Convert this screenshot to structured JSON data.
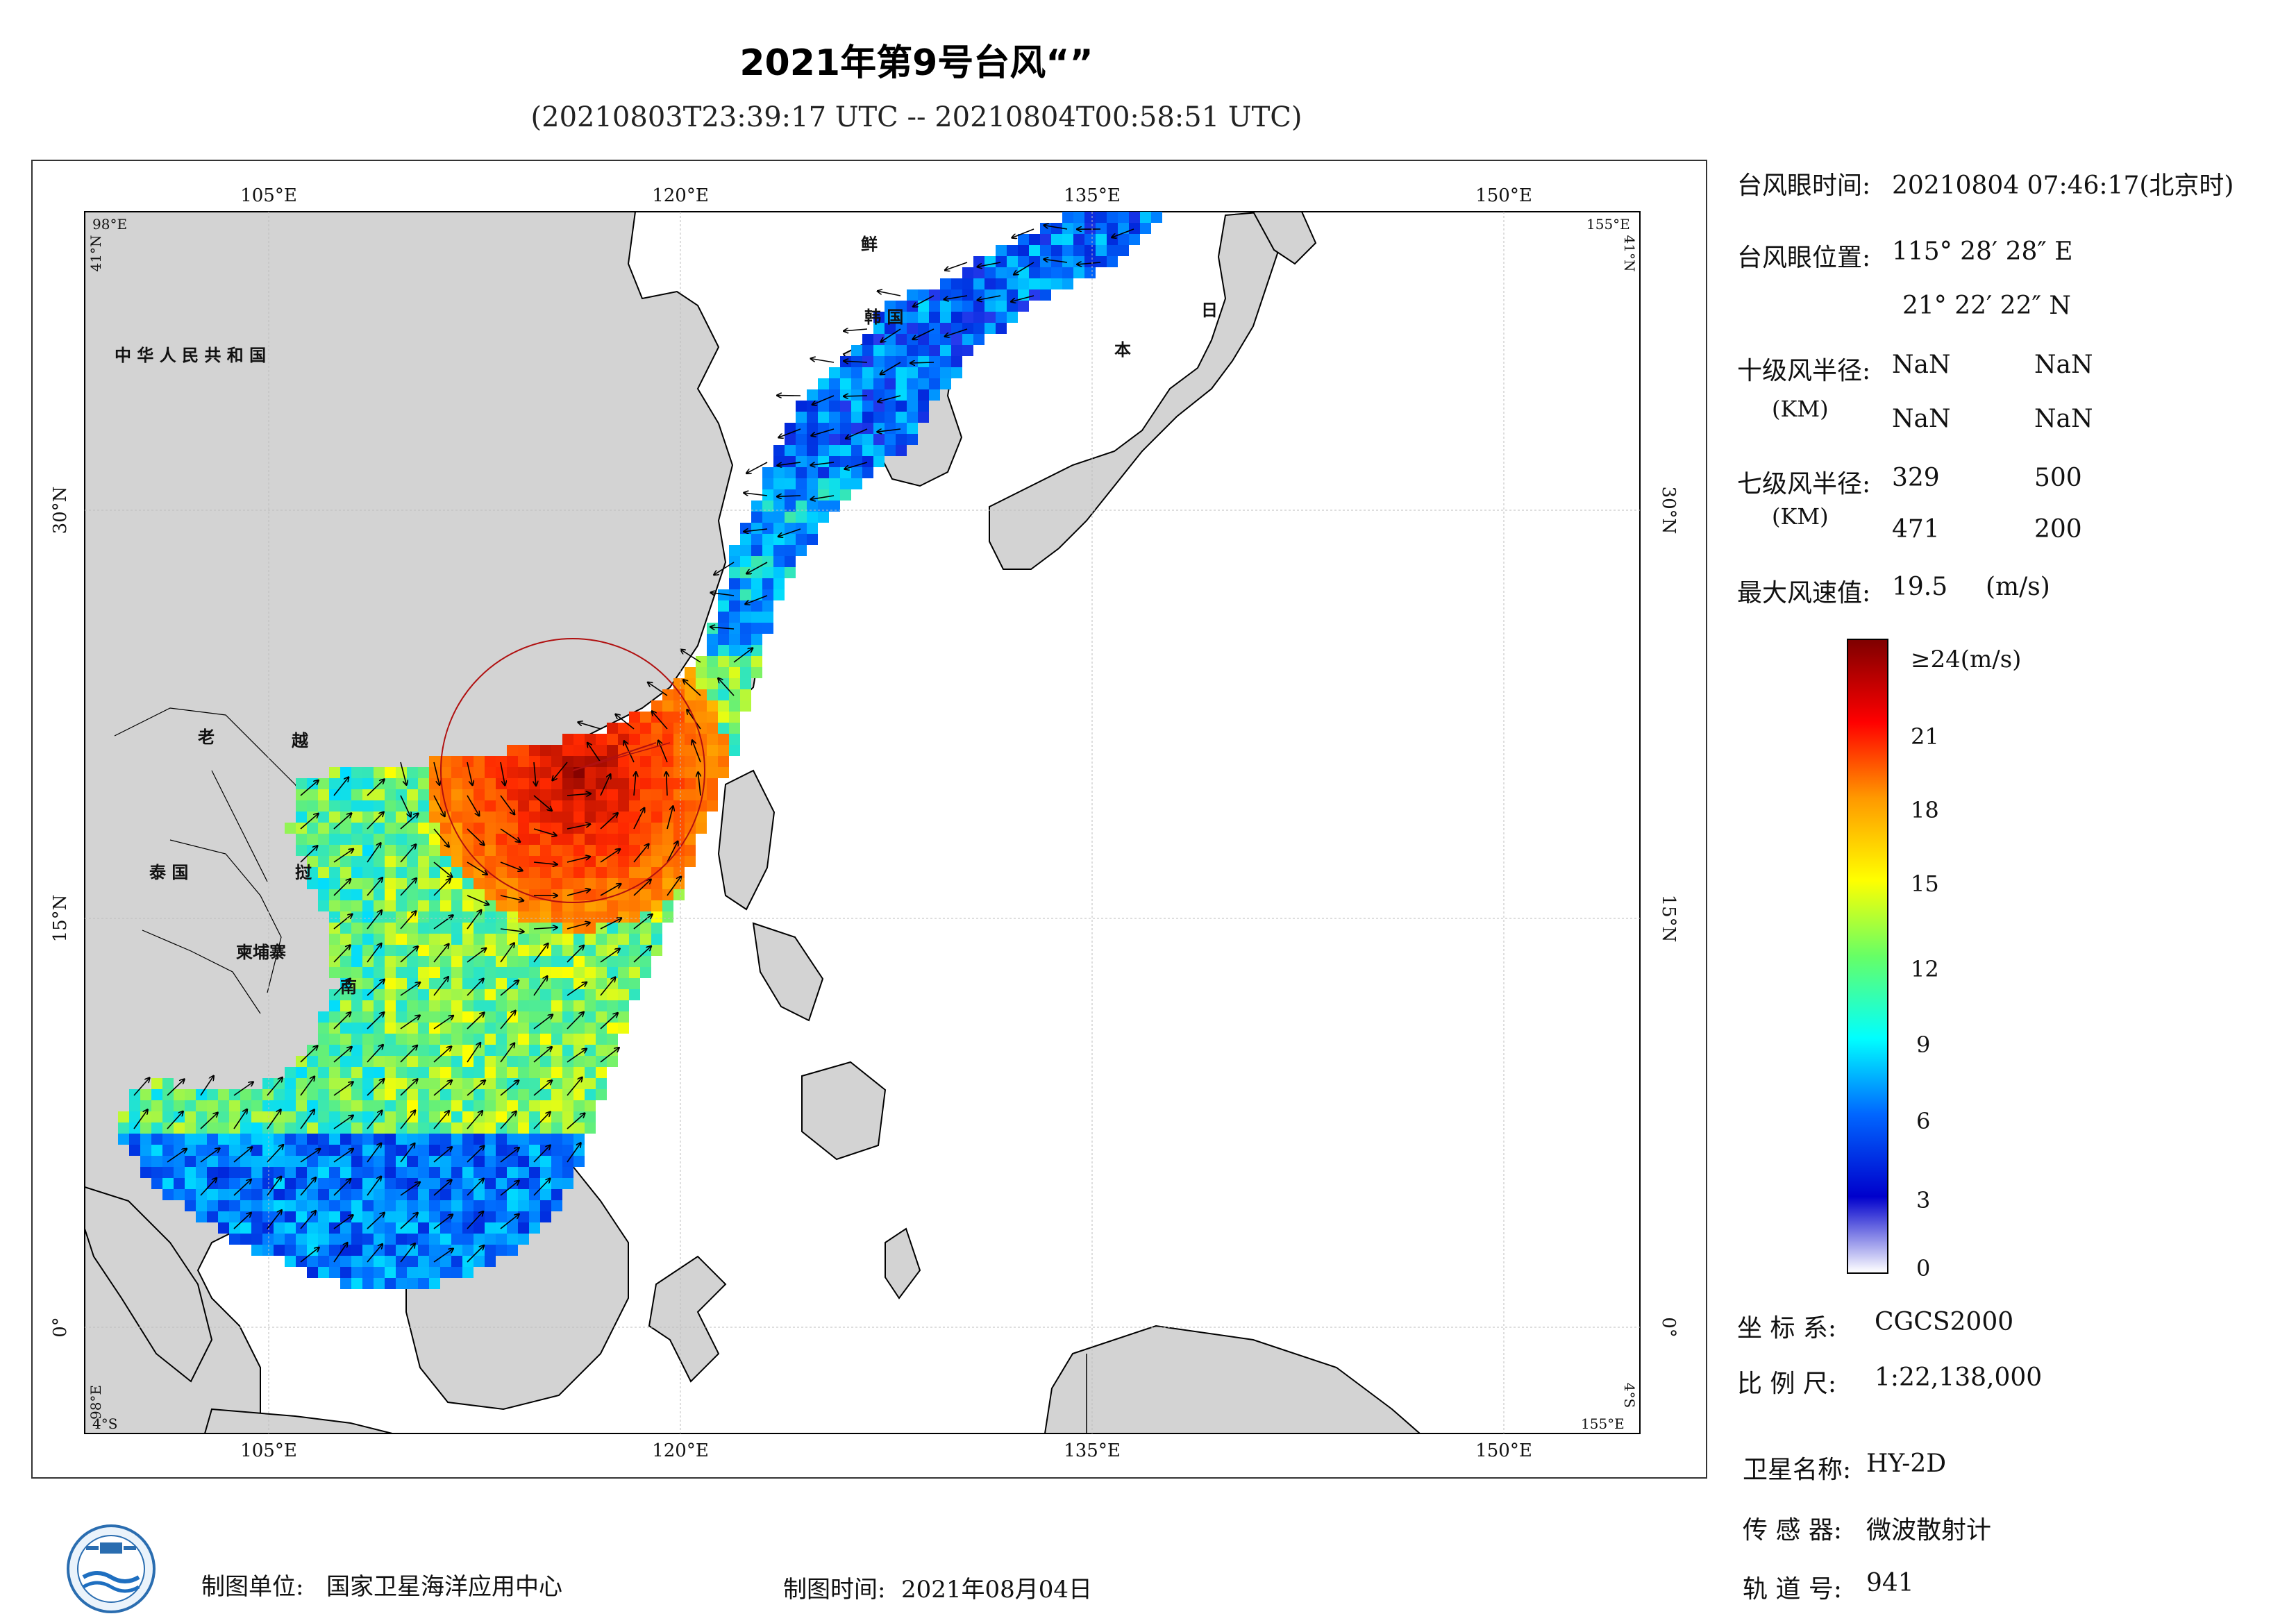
{
  "header": {
    "title": "2021年第9号台风“”",
    "subtitle": "(20210803T23:39:17 UTC -- 20210804T00:58:51 UTC)"
  },
  "map": {
    "lon_ticks": [
      "105°E",
      "120°E",
      "135°E",
      "150°E"
    ],
    "lat_ticks": [
      "30°N",
      "15°N",
      "0°"
    ],
    "corner_labels": {
      "top_left_lon": "98°E",
      "top_left_lat": "41°N",
      "top_right_lon": "155°E",
      "top_right_lat": "41°N",
      "bottom_left_lon": "98°E",
      "bottom_left_lat": "4°S",
      "bottom_right_lon": "155°E",
      "bottom_right_lat": "4°S"
    },
    "place_labels": [
      {
        "text": "中 华 人 民 共 和 国",
        "name": "label-china"
      },
      {
        "text": "鲜",
        "name": "label-korea-north"
      },
      {
        "text": "韩 国",
        "name": "label-korea-south"
      },
      {
        "text": "日",
        "name": "label-japan-1"
      },
      {
        "text": "本",
        "name": "label-japan-2"
      },
      {
        "text": "老",
        "name": "label-laos"
      },
      {
        "text": "越",
        "name": "label-vietnam-1"
      },
      {
        "text": "泰 国",
        "name": "label-thailand"
      },
      {
        "text": "挝",
        "name": "label-laos-2"
      },
      {
        "text": "柬埔寨",
        "name": "label-cambodia"
      },
      {
        "text": "南",
        "name": "label-vietnam-2"
      }
    ]
  },
  "info": {
    "eye_time_label": "台风眼时间:",
    "eye_time_value": "20210804 07:46:17(北京时)",
    "eye_pos_label": "台风眼位置:",
    "eye_lon": "115° 28′ 28″ E",
    "eye_lat": "21° 22′ 22″ N",
    "r10_label": "十级风半径:",
    "r10_unit": "(KM)",
    "r10_values": [
      "NaN",
      "NaN",
      "NaN",
      "NaN"
    ],
    "r7_label": "七级风半径:",
    "r7_unit": "(KM)",
    "r7_values": [
      "329",
      "500",
      "471",
      "200"
    ],
    "max_wind_label": "最大风速值:",
    "max_wind_value": "19.5",
    "max_wind_unit": "(m/s)"
  },
  "colorbar": {
    "top_label": "≥24(m/s)",
    "tick_labels": [
      "21",
      "18",
      "15",
      "12",
      "9",
      "6",
      "3",
      "0"
    ],
    "colors": [
      "#7f0000",
      "#ff0000",
      "#ff9900",
      "#ffff00",
      "#66ff66",
      "#00ffff",
      "#0066ff",
      "#0000cc",
      "#ffffff"
    ]
  },
  "meta": {
    "crs_label": "坐 标 系:",
    "crs_value": "CGCS2000",
    "scale_label": "比 例 尺:",
    "scale_value": "1:22,138,000",
    "satellite_label": "卫星名称:",
    "satellite_value": "HY-2D",
    "sensor_label": "传 感 器:",
    "sensor_value": "微波散射计",
    "orbit_label": "轨 道 号:",
    "orbit_value": "941"
  },
  "footer": {
    "producer_label": "制图单位:",
    "producer_value": "国家卫星海洋应用中心",
    "date_label": "制图时间:",
    "date_value": "2021年08月04日"
  }
}
